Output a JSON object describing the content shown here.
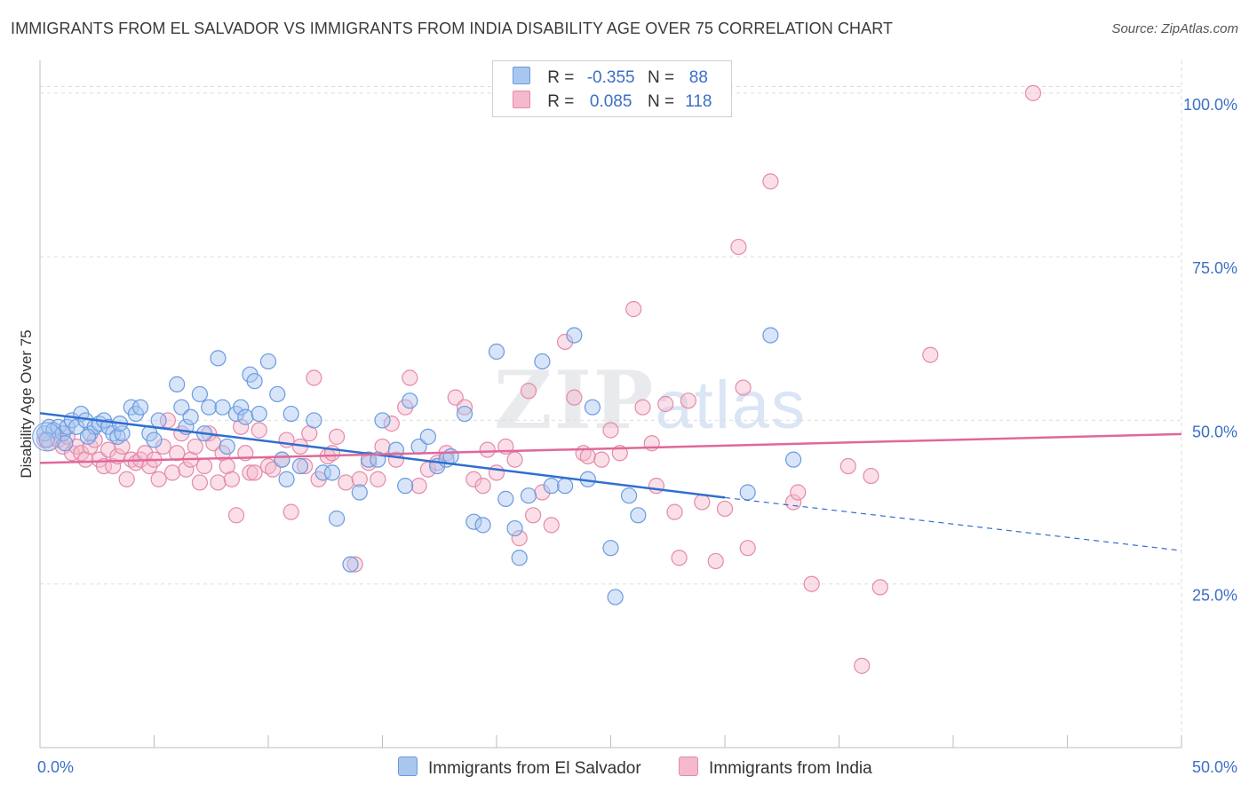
{
  "title": "IMMIGRANTS FROM EL SALVADOR VS IMMIGRANTS FROM INDIA DISABILITY AGE OVER 75 CORRELATION CHART",
  "source": "Source: ZipAtlas.com",
  "watermark": {
    "zip": "ZIP",
    "atlas": "atlas"
  },
  "legend": {
    "rows": [
      {
        "r_label": "R =",
        "r_value": "-0.355",
        "n_label": "N =",
        "n_value": "88"
      },
      {
        "r_label": "R =",
        "r_value": "0.085",
        "n_label": "N =",
        "n_value": "118"
      }
    ]
  },
  "colors": {
    "blue_fill": "#a9c6ef",
    "blue_stroke": "#6a9ae0",
    "blue_line": "#2f6fcf",
    "pink_fill": "#f5b8cc",
    "pink_stroke": "#e58aa8",
    "pink_line": "#e0689a",
    "tick_label": "#3b6fc6",
    "grid": "#dddddd"
  },
  "chart_data": {
    "type": "scatter",
    "ylabel": "Disability Age Over 75",
    "xlim": [
      0,
      50
    ],
    "ylim": [
      0,
      105
    ],
    "x_tick_labels": [
      "0.0%",
      "50.0%"
    ],
    "y_ticks": [
      25,
      50,
      75,
      100
    ],
    "y_tick_labels": [
      "25.0%",
      "50.0%",
      "75.0%",
      "100.0%"
    ],
    "grid": true,
    "legend_position": "bottom",
    "series": [
      {
        "name": "Immigrants from El Salvador",
        "color": "blue",
        "trend": {
          "x": [
            0,
            30
          ],
          "y": [
            51.1,
            38.2
          ],
          "dashed_to": [
            50,
            30.1
          ]
        },
        "points": [
          [
            0.2,
            48
          ],
          [
            0.4,
            49
          ],
          [
            0.6,
            48.5
          ],
          [
            0.8,
            49
          ],
          [
            1.0,
            48
          ],
          [
            1.2,
            49
          ],
          [
            1.4,
            50
          ],
          [
            1.6,
            49
          ],
          [
            1.8,
            51
          ],
          [
            2.0,
            50
          ],
          [
            2.2,
            48
          ],
          [
            2.4,
            49
          ],
          [
            2.6,
            49.5
          ],
          [
            2.8,
            50
          ],
          [
            3.0,
            49
          ],
          [
            3.2,
            48
          ],
          [
            3.4,
            47.5
          ],
          [
            3.6,
            48
          ],
          [
            4.0,
            52
          ],
          [
            4.2,
            51
          ],
          [
            4.4,
            52
          ],
          [
            4.8,
            48
          ],
          [
            5.0,
            47
          ],
          [
            5.2,
            50
          ],
          [
            6.0,
            55.5
          ],
          [
            6.2,
            52
          ],
          [
            6.4,
            49
          ],
          [
            6.6,
            50.5
          ],
          [
            7.0,
            54
          ],
          [
            7.2,
            48
          ],
          [
            7.4,
            52
          ],
          [
            7.8,
            59.5
          ],
          [
            8.0,
            52
          ],
          [
            8.2,
            46
          ],
          [
            8.6,
            51
          ],
          [
            8.8,
            52
          ],
          [
            9.0,
            50.5
          ],
          [
            9.2,
            57
          ],
          [
            9.4,
            56
          ],
          [
            9.6,
            51
          ],
          [
            10.0,
            59
          ],
          [
            10.4,
            54
          ],
          [
            10.6,
            44
          ],
          [
            10.8,
            41
          ],
          [
            11.0,
            51
          ],
          [
            11.4,
            43
          ],
          [
            12.0,
            50
          ],
          [
            12.4,
            42
          ],
          [
            12.8,
            42
          ],
          [
            13.0,
            35
          ],
          [
            13.6,
            28
          ],
          [
            14.0,
            39
          ],
          [
            14.4,
            44
          ],
          [
            14.8,
            44
          ],
          [
            15.0,
            50
          ],
          [
            15.6,
            45.5
          ],
          [
            16.0,
            40
          ],
          [
            16.2,
            53
          ],
          [
            16.6,
            46
          ],
          [
            17.0,
            47.5
          ],
          [
            17.4,
            43
          ],
          [
            17.8,
            44
          ],
          [
            18.0,
            44.5
          ],
          [
            18.6,
            51
          ],
          [
            19.0,
            34.5
          ],
          [
            19.4,
            34
          ],
          [
            20.0,
            60.5
          ],
          [
            20.4,
            38
          ],
          [
            20.8,
            33.5
          ],
          [
            21.0,
            29
          ],
          [
            21.4,
            38.5
          ],
          [
            22.0,
            59
          ],
          [
            22.4,
            40
          ],
          [
            23.0,
            40
          ],
          [
            23.4,
            63
          ],
          [
            24.0,
            41
          ],
          [
            24.2,
            52
          ],
          [
            25.0,
            30.5
          ],
          [
            25.2,
            23
          ],
          [
            25.8,
            38.5
          ],
          [
            26.2,
            35.5
          ],
          [
            31.0,
            39
          ],
          [
            32.0,
            63
          ],
          [
            33.0,
            44
          ],
          [
            0.3,
            47
          ],
          [
            1.1,
            46.5
          ],
          [
            2.1,
            47.5
          ],
          [
            3.5,
            49.5
          ]
        ]
      },
      {
        "name": "Immigrants from India",
        "color": "pink",
        "trend": {
          "x": [
            0,
            50
          ],
          "y": [
            43.5,
            47.9
          ]
        },
        "points": [
          [
            0.2,
            47
          ],
          [
            0.4,
            46.5
          ],
          [
            0.8,
            47
          ],
          [
            1.0,
            46
          ],
          [
            1.2,
            47.5
          ],
          [
            1.4,
            45
          ],
          [
            1.6,
            46
          ],
          [
            1.8,
            45
          ],
          [
            2.0,
            44
          ],
          [
            2.2,
            46
          ],
          [
            2.4,
            47
          ],
          [
            2.6,
            44
          ],
          [
            2.8,
            43
          ],
          [
            3.0,
            45.5
          ],
          [
            3.2,
            43
          ],
          [
            3.4,
            44.5
          ],
          [
            3.6,
            46
          ],
          [
            3.8,
            41
          ],
          [
            4.0,
            44
          ],
          [
            4.2,
            43.5
          ],
          [
            4.4,
            44
          ],
          [
            4.6,
            45
          ],
          [
            4.8,
            43
          ],
          [
            5.0,
            44
          ],
          [
            5.2,
            41
          ],
          [
            5.4,
            46
          ],
          [
            5.6,
            50
          ],
          [
            5.8,
            42
          ],
          [
            6.0,
            45
          ],
          [
            6.2,
            48
          ],
          [
            6.4,
            42.5
          ],
          [
            6.6,
            44
          ],
          [
            6.8,
            46
          ],
          [
            7.0,
            40.5
          ],
          [
            7.2,
            43
          ],
          [
            7.4,
            48
          ],
          [
            7.6,
            46.5
          ],
          [
            7.8,
            40.5
          ],
          [
            8.0,
            45
          ],
          [
            8.2,
            43
          ],
          [
            8.4,
            41
          ],
          [
            8.6,
            35.5
          ],
          [
            8.8,
            49
          ],
          [
            9.0,
            45
          ],
          [
            9.2,
            42
          ],
          [
            9.4,
            42
          ],
          [
            9.6,
            48.5
          ],
          [
            10.0,
            43
          ],
          [
            10.2,
            42.5
          ],
          [
            10.6,
            44
          ],
          [
            10.8,
            47
          ],
          [
            11.0,
            36
          ],
          [
            11.4,
            46
          ],
          [
            11.6,
            43
          ],
          [
            11.8,
            48
          ],
          [
            12.0,
            56.5
          ],
          [
            12.2,
            41
          ],
          [
            12.6,
            44.5
          ],
          [
            12.8,
            45
          ],
          [
            13.0,
            47.5
          ],
          [
            13.4,
            40.5
          ],
          [
            13.8,
            28
          ],
          [
            14.0,
            41
          ],
          [
            14.4,
            43.5
          ],
          [
            14.8,
            41
          ],
          [
            15.0,
            46
          ],
          [
            15.4,
            49.5
          ],
          [
            15.6,
            44
          ],
          [
            16.0,
            52
          ],
          [
            16.2,
            56.5
          ],
          [
            16.6,
            40
          ],
          [
            17.0,
            42.5
          ],
          [
            17.4,
            43.5
          ],
          [
            17.8,
            45
          ],
          [
            18.2,
            53.5
          ],
          [
            18.6,
            52
          ],
          [
            19.0,
            41
          ],
          [
            19.4,
            40
          ],
          [
            19.6,
            45.5
          ],
          [
            20.0,
            42
          ],
          [
            20.4,
            46
          ],
          [
            20.8,
            44
          ],
          [
            21.0,
            32
          ],
          [
            21.4,
            54.5
          ],
          [
            21.6,
            35.5
          ],
          [
            22.0,
            39
          ],
          [
            22.4,
            34
          ],
          [
            23.0,
            62
          ],
          [
            23.4,
            53.5
          ],
          [
            23.8,
            45
          ],
          [
            24.0,
            44.5
          ],
          [
            24.6,
            44
          ],
          [
            25.0,
            48.5
          ],
          [
            25.4,
            45
          ],
          [
            26.0,
            67
          ],
          [
            26.4,
            52
          ],
          [
            26.8,
            46.5
          ],
          [
            27.0,
            40
          ],
          [
            27.4,
            52.5
          ],
          [
            27.8,
            36
          ],
          [
            28.0,
            29
          ],
          [
            28.4,
            53
          ],
          [
            29.0,
            37.5
          ],
          [
            29.6,
            28.5
          ],
          [
            30.0,
            36.5
          ],
          [
            30.6,
            76.5
          ],
          [
            30.8,
            55
          ],
          [
            31.0,
            30.5
          ],
          [
            32.0,
            86.5
          ],
          [
            33.0,
            37.5
          ],
          [
            33.2,
            39
          ],
          [
            33.8,
            25
          ],
          [
            35.4,
            43
          ],
          [
            36.0,
            12.5
          ],
          [
            36.4,
            41.5
          ],
          [
            36.8,
            24.5
          ],
          [
            39.0,
            60
          ],
          [
            43.5,
            100
          ]
        ]
      }
    ]
  },
  "bottom_legend": [
    {
      "label": "Immigrants from El Salvador",
      "color": "blue"
    },
    {
      "label": "Immigrants from India",
      "color": "pink"
    }
  ]
}
